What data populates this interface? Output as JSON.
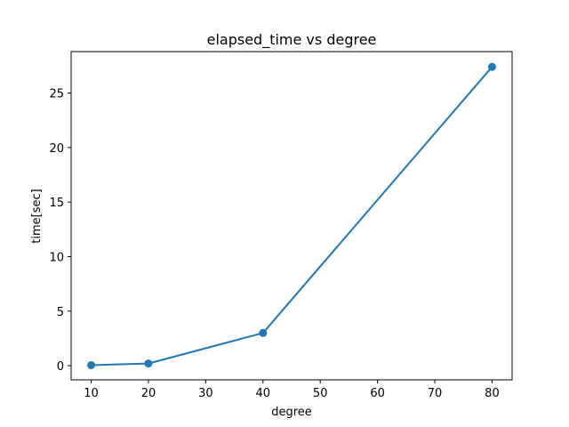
{
  "chart_data": {
    "type": "line",
    "title": "elapsed_time vs degree",
    "xlabel": "degree",
    "ylabel": "time[sec]",
    "x": [
      10,
      20,
      40,
      80
    ],
    "series": [
      {
        "values": [
          0.05,
          0.2,
          3.0,
          27.4
        ],
        "marker": "circle"
      }
    ],
    "xlim": [
      6.5,
      83.5
    ],
    "ylim": [
      -1.3,
      28.8
    ],
    "xticks": [
      10,
      20,
      30,
      40,
      50,
      60,
      70,
      80
    ],
    "yticks": [
      0,
      5,
      10,
      15,
      20,
      25
    ],
    "grid": false,
    "color": "#1f77b4"
  }
}
